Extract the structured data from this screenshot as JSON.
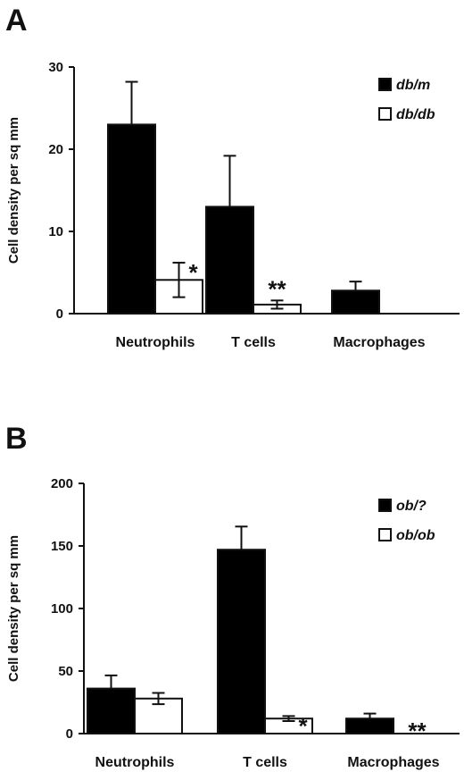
{
  "chart_data": [
    {
      "type": "bar",
      "panel_label": "A",
      "ylabel": "Cell density per sq mm",
      "ylim": [
        0,
        30
      ],
      "yticks": [
        0,
        10,
        20,
        30
      ],
      "categories": [
        "Neutrophils",
        "T cells",
        "Macrophages"
      ],
      "series": [
        {
          "name": "db/m",
          "fill": "#000000",
          "values": [
            23,
            13,
            2.8
          ],
          "errors": [
            5.2,
            6.2,
            1.1
          ]
        },
        {
          "name": "db/db",
          "fill": "#ffffff",
          "values": [
            4.1,
            1.1,
            0
          ],
          "errors": [
            2.1,
            0.5,
            null
          ]
        }
      ],
      "annotations": [
        {
          "series": 1,
          "category": 0,
          "text": "*"
        },
        {
          "series": 1,
          "category": 1,
          "text": "**"
        }
      ],
      "legend_position": "top-right"
    },
    {
      "type": "bar",
      "panel_label": "B",
      "ylabel": "Cell density per sq mm",
      "ylim": [
        0,
        200
      ],
      "yticks": [
        0,
        50,
        100,
        150,
        200
      ],
      "categories": [
        "Neutrophils",
        "T cells",
        "Macrophages"
      ],
      "series": [
        {
          "name": "ob/?",
          "fill": "#000000",
          "values": [
            36,
            147,
            12
          ],
          "errors": [
            10.5,
            18.5,
            4
          ]
        },
        {
          "name": "ob/ob",
          "fill": "#ffffff",
          "values": [
            28,
            12,
            0
          ],
          "errors": [
            4.5,
            2,
            null
          ]
        }
      ],
      "annotations": [
        {
          "series": 1,
          "category": 1,
          "text": "*"
        },
        {
          "series": 1,
          "category": 2,
          "text": "**"
        }
      ],
      "legend_position": "top-right"
    }
  ]
}
